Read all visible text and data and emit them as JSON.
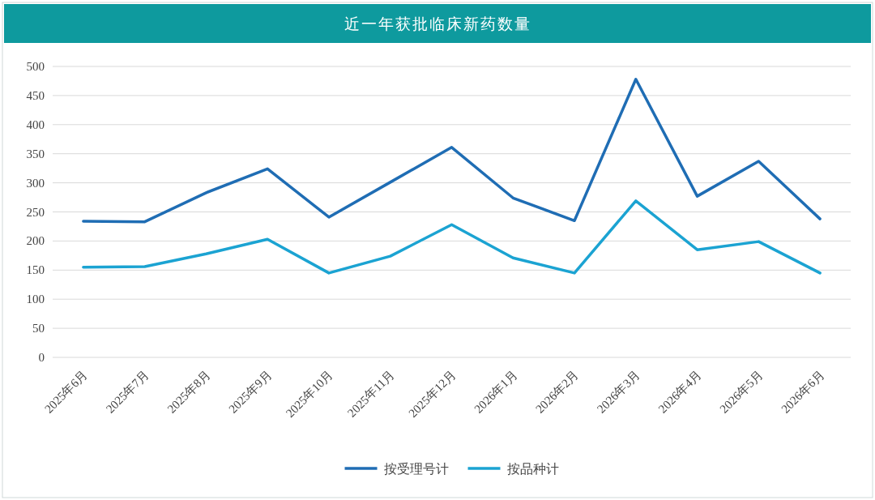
{
  "chart_data": {
    "type": "line",
    "title": "近一年获批临床新药数量",
    "categories": [
      "2025年6月",
      "2025年7月",
      "2025年8月",
      "2025年9月",
      "2025年10月",
      "2025年11月",
      "2025年12月",
      "2026年1月",
      "2026年2月",
      "2026年3月",
      "2026年4月",
      "2026年5月",
      "2026年6月"
    ],
    "series": [
      {
        "name": "按受理号计",
        "color": "#1f6db4",
        "values": [
          234,
          233,
          283,
          324,
          241,
          301,
          361,
          274,
          235,
          478,
          277,
          337,
          238
        ]
      },
      {
        "name": "按品种计",
        "color": "#1ba3d2",
        "values": [
          155,
          156,
          178,
          203,
          145,
          174,
          228,
          171,
          145,
          269,
          185,
          199,
          145
        ]
      }
    ],
    "ylim": [
      0,
      500
    ],
    "yticks": [
      0,
      50,
      100,
      150,
      200,
      250,
      300,
      350,
      400,
      450,
      500
    ],
    "grid": "y",
    "legend": "bottom",
    "marker": "none",
    "line_style": "solid"
  }
}
